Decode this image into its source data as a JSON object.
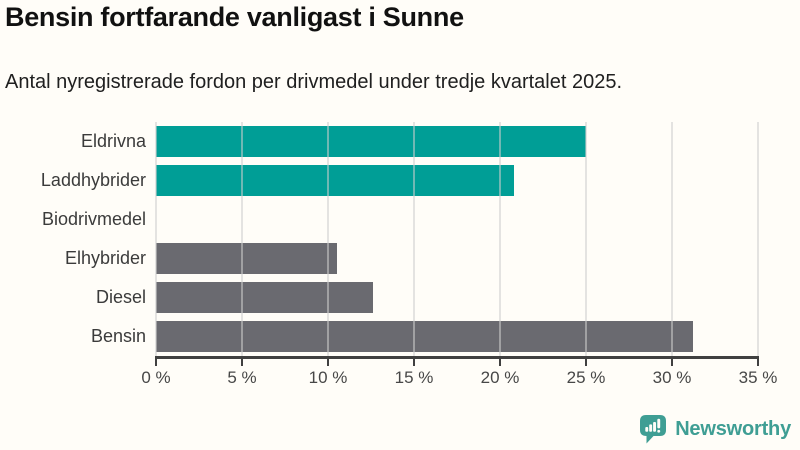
{
  "title": "Bensin fortfarande vanligast i Sunne",
  "subtitle": "Antal nyregistrerade fordon per drivmedel under tredje kvartalet 2025.",
  "chart_data": {
    "type": "bar",
    "orientation": "horizontal",
    "categories": [
      "Eldrivna",
      "Laddhybrider",
      "Biodrivmedel",
      "Elhybrider",
      "Diesel",
      "Bensin"
    ],
    "values": [
      25.0,
      20.8,
      0,
      10.5,
      12.6,
      31.2
    ],
    "value_unit": "%",
    "xlabel": "",
    "ylabel": "",
    "xlim": [
      0,
      35
    ],
    "x_ticks": [
      {
        "value": 0,
        "label": "0 %"
      },
      {
        "value": 5,
        "label": "5 %"
      },
      {
        "value": 10,
        "label": "10 %"
      },
      {
        "value": 15,
        "label": "15 %"
      },
      {
        "value": 20,
        "label": "20 %"
      },
      {
        "value": 25,
        "label": "25 %"
      },
      {
        "value": 30,
        "label": "30 %"
      },
      {
        "value": 35,
        "label": "35 %"
      }
    ],
    "grid": true,
    "legend": "none",
    "bar_colors": [
      "#009e96",
      "#009e96",
      "#009e96",
      "#6a6a70",
      "#6a6a70",
      "#6a6a70"
    ]
  },
  "branding": {
    "logo_text": "Newsworthy",
    "logo_color": "#3f9e94"
  },
  "colors": {
    "background": "#fffdf8",
    "teal": "#009e96",
    "gray": "#6a6a70",
    "axis": "#404040",
    "gridline": "#e6e6e6",
    "title_text": "#111111",
    "body_text": "#3b3b3b"
  }
}
